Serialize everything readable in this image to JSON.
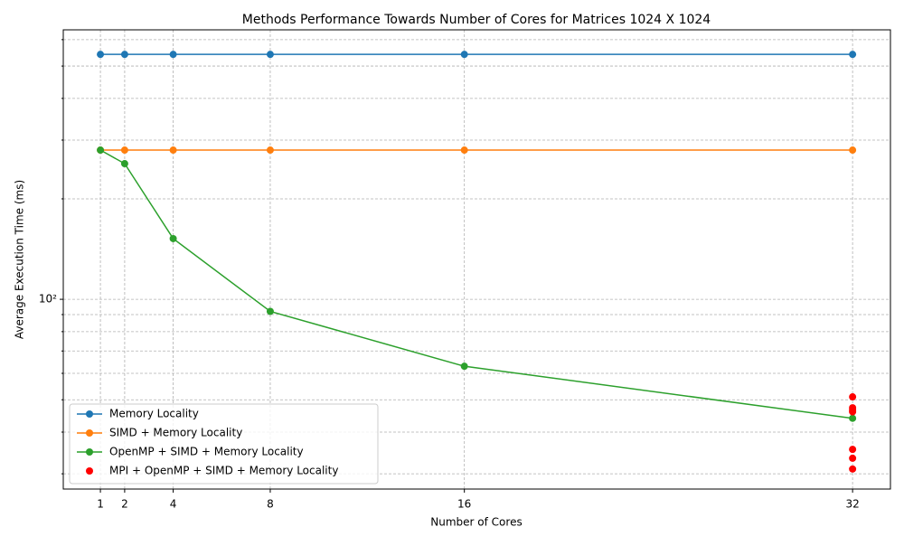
{
  "chart_data": {
    "type": "line",
    "title": "Methods Performance Towards Number of Cores for Matrices 1024 X 1024",
    "x_label": "Number of Cores",
    "y_label": "Average Execution Time (ms)",
    "y_log_scale": true,
    "grid": true,
    "legend_position": "lower left",
    "xlim": [
      -0.53,
      33.56
    ],
    "xticks": [
      1,
      2,
      4,
      8,
      16,
      32
    ],
    "ylim": [
      27,
      642
    ],
    "yticks": [
      {
        "value": 100,
        "label": "10²"
      }
    ],
    "y_minor_ticks": [
      30,
      40,
      50,
      60,
      70,
      80,
      90,
      200,
      300,
      400,
      500,
      600
    ],
    "series": [
      {
        "name": "Memory Locality",
        "color": "#1f77b4",
        "style": "line",
        "x": [
          1,
          2,
          4,
          8,
          16,
          32
        ],
        "values": [
          542,
          542,
          542,
          542,
          542,
          542
        ]
      },
      {
        "name": "SIMD + Memory Locality",
        "color": "#ff7f0e",
        "style": "line",
        "x": [
          1,
          2,
          4,
          8,
          16,
          32
        ],
        "values": [
          280,
          280,
          280,
          280,
          280,
          280
        ]
      },
      {
        "name": "OpenMP + SIMD + Memory Locality",
        "color": "#2ca02c",
        "style": "line",
        "x": [
          1,
          2,
          4,
          8,
          16,
          32
        ],
        "values": [
          280,
          255,
          152,
          92,
          63,
          44
        ]
      },
      {
        "name": "MPI + OpenMP + SIMD + Memory Locality",
        "color": "#ff0000",
        "style": "scatter",
        "x": [
          32,
          32,
          32,
          32,
          32,
          32,
          32
        ],
        "values": [
          51,
          47.3,
          46.5,
          46,
          35.5,
          33.4,
          31
        ]
      }
    ]
  }
}
